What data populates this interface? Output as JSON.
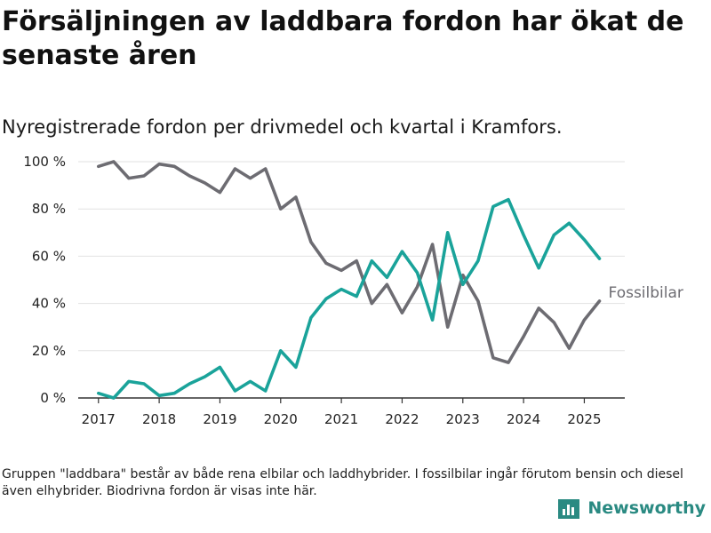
{
  "title": "Försäljningen av laddbara fordon har ökat de senaste åren",
  "subtitle": "Nyregistrerade fordon per drivmedel och kvartal i Kramfors.",
  "footnote": "Gruppen \"laddbara\" består av både rena elbilar och laddhybrider. I fossilbilar ingår förutom bensin och diesel även elhybrider. Biodrivna fordon är visas inte här.",
  "brand": {
    "name": "Newsworthy",
    "icon": "newsworthy-logo-icon",
    "color": "#2a8a82"
  },
  "chart_data": {
    "type": "line",
    "xlabel": "",
    "ylabel": "",
    "ylim": [
      0,
      100
    ],
    "yticks": [
      0,
      20,
      40,
      60,
      80,
      100
    ],
    "ytick_labels": [
      "0 %",
      "20 %",
      "40 %",
      "60 %",
      "80 %",
      "100 %"
    ],
    "xlim": [
      "2016-09",
      "2025-09"
    ],
    "xticks": [
      "2017",
      "2018",
      "2019",
      "2020",
      "2021",
      "2022",
      "2023",
      "2024",
      "2025"
    ],
    "x": [
      "2017 Q1",
      "2017 Q2",
      "2017 Q3",
      "2017 Q4",
      "2018 Q1",
      "2018 Q2",
      "2018 Q3",
      "2018 Q4",
      "2019 Q1",
      "2019 Q2",
      "2019 Q3",
      "2019 Q4",
      "2020 Q1",
      "2020 Q2",
      "2020 Q3",
      "2020 Q4",
      "2021 Q1",
      "2021 Q2",
      "2021 Q3",
      "2021 Q4",
      "2022 Q1",
      "2022 Q2",
      "2022 Q3",
      "2022 Q4",
      "2023 Q1",
      "2023 Q2",
      "2023 Q3",
      "2023 Q4",
      "2024 Q1",
      "2024 Q2",
      "2024 Q3",
      "2024 Q4",
      "2025 Q1",
      "2025 Q2"
    ],
    "grid": true,
    "legend": "inline-label",
    "series": [
      {
        "name": "Fossilbilar",
        "color": "#6d6c72",
        "values": [
          98,
          100,
          93,
          94,
          99,
          98,
          94,
          91,
          87,
          97,
          93,
          97,
          80,
          85,
          66,
          57,
          54,
          58,
          40,
          48,
          36,
          47,
          65,
          30,
          52,
          41,
          17,
          15,
          26,
          38,
          32,
          21,
          33,
          41
        ]
      },
      {
        "color": "#1aa39a",
        "values": [
          2,
          0,
          7,
          6,
          1,
          2,
          6,
          9,
          13,
          3,
          7,
          3,
          20,
          13,
          34,
          42,
          46,
          43,
          58,
          51,
          62,
          53,
          33,
          70,
          48,
          58,
          81,
          84,
          69,
          55,
          69,
          74,
          67,
          59
        ]
      }
    ]
  }
}
